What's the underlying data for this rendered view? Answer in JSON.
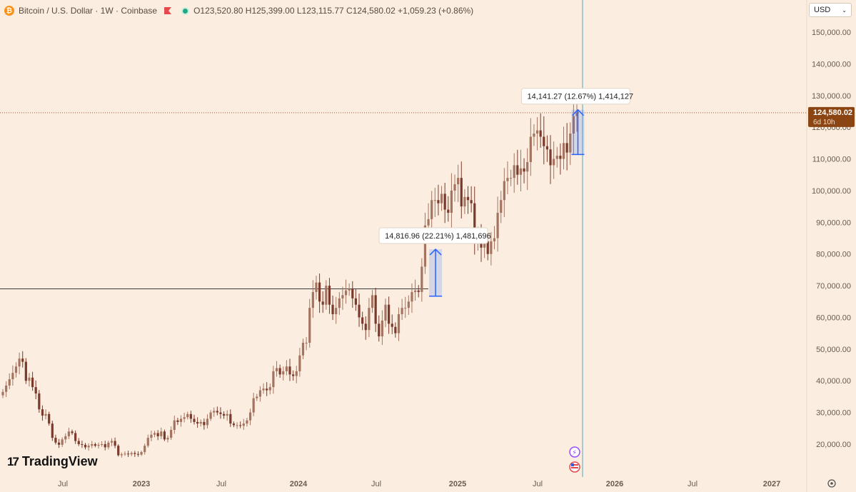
{
  "header": {
    "symbol_icon": "bitcoin-icon",
    "title": "Bitcoin / U.S. Dollar · 1W · Coinbase",
    "ohlc": "O123,520.80 H125,399.00 L123,115.77 C124,580.02 +1,059.23 (+0.86%)"
  },
  "currency_selector": {
    "value": "USD"
  },
  "logo": {
    "text": "TradingView"
  },
  "last_price": {
    "value": "124,580.02",
    "countdown": "6d 10h"
  },
  "measurements": [
    {
      "label": "14,816.96 (22.21%) 1,481,696",
      "from": 66700,
      "to": 81500,
      "x": "2024-11-11"
    },
    {
      "label": "14,141.27 (12.67%) 1,414,127",
      "from": 111400,
      "to": 125500,
      "x": "2025-10-06"
    }
  ],
  "colors": {
    "background": "#fbeee0",
    "up": "#a47460",
    "down": "#7a3a2c",
    "measure": "#2962ff",
    "cursor_line": "#4ea7c4",
    "price_tag": "#8b4513"
  },
  "chart_data": {
    "type": "candlestick",
    "interval": "1W",
    "ylim": [
      12000,
      155000
    ],
    "y_ticks": [
      "150,000.00",
      "140,000.00",
      "130,000.00",
      "120,000.00",
      "110,000.00",
      "100,000.00",
      "90,000.00",
      "80,000.00",
      "70,000.00",
      "60,000.00",
      "50,000.00",
      "40,000.00",
      "30,000.00",
      "20,000.00"
    ],
    "x_ticks": [
      "Jul",
      "2023",
      "Jul",
      "2024",
      "Jul",
      "2025",
      "Jul",
      "2026",
      "Jul",
      "2027"
    ],
    "horizontal_line": 69000,
    "last_price": 124580.02,
    "weekly_closes": [
      36500,
      38500,
      40500,
      42500,
      44500,
      47000,
      46000,
      40000,
      41000,
      38000,
      36000,
      31000,
      29000,
      29500,
      26500,
      22000,
      20500,
      19800,
      21500,
      22500,
      24000,
      23500,
      21000,
      20000,
      19800,
      19000,
      19500,
      20000,
      19500,
      19800,
      20000,
      19000,
      20500,
      21000,
      19500,
      16500,
      16800,
      17000,
      16800,
      17200,
      16900,
      16700,
      17500,
      19500,
      22000,
      23000,
      23500,
      22500,
      24000,
      21500,
      22000,
      24500,
      27500,
      27000,
      28000,
      28500,
      29500,
      28000,
      27000,
      26500,
      27000,
      26000,
      28000,
      30000,
      30500,
      30000,
      29500,
      29000,
      29500,
      26500,
      26000,
      26000,
      25800,
      26500,
      27500,
      30000,
      34500,
      35000,
      37000,
      37500,
      37000,
      38000,
      43000,
      44000,
      42000,
      43000,
      44500,
      42000,
      41500,
      43000,
      48000,
      52000,
      52000,
      63000,
      68000,
      71000,
      65000,
      64000,
      70000,
      64000,
      61000,
      63000,
      66000,
      67000,
      68500,
      69000,
      66000,
      64000,
      60000,
      58000,
      56000,
      63000,
      67000,
      58000,
      54000,
      59000,
      64000,
      58000,
      57000,
      55000,
      61000,
      63000,
      63000,
      65000,
      68000,
      68500,
      68000,
      76000,
      89000,
      91000,
      97000,
      97000,
      96000,
      99000,
      94000,
      93000,
      100000,
      102000,
      104000,
      95000,
      98000,
      97000,
      96000,
      84000,
      86000,
      82000,
      84000,
      80000,
      84000,
      85000,
      93000,
      97000,
      103000,
      104000,
      104000,
      108000,
      105000,
      107000,
      106000,
      109000,
      117000,
      118000,
      119000,
      117000,
      114000,
      113000,
      108000,
      110000,
      111000,
      110000,
      115000,
      112000,
      118000,
      123520.8,
      124580.02
    ]
  }
}
